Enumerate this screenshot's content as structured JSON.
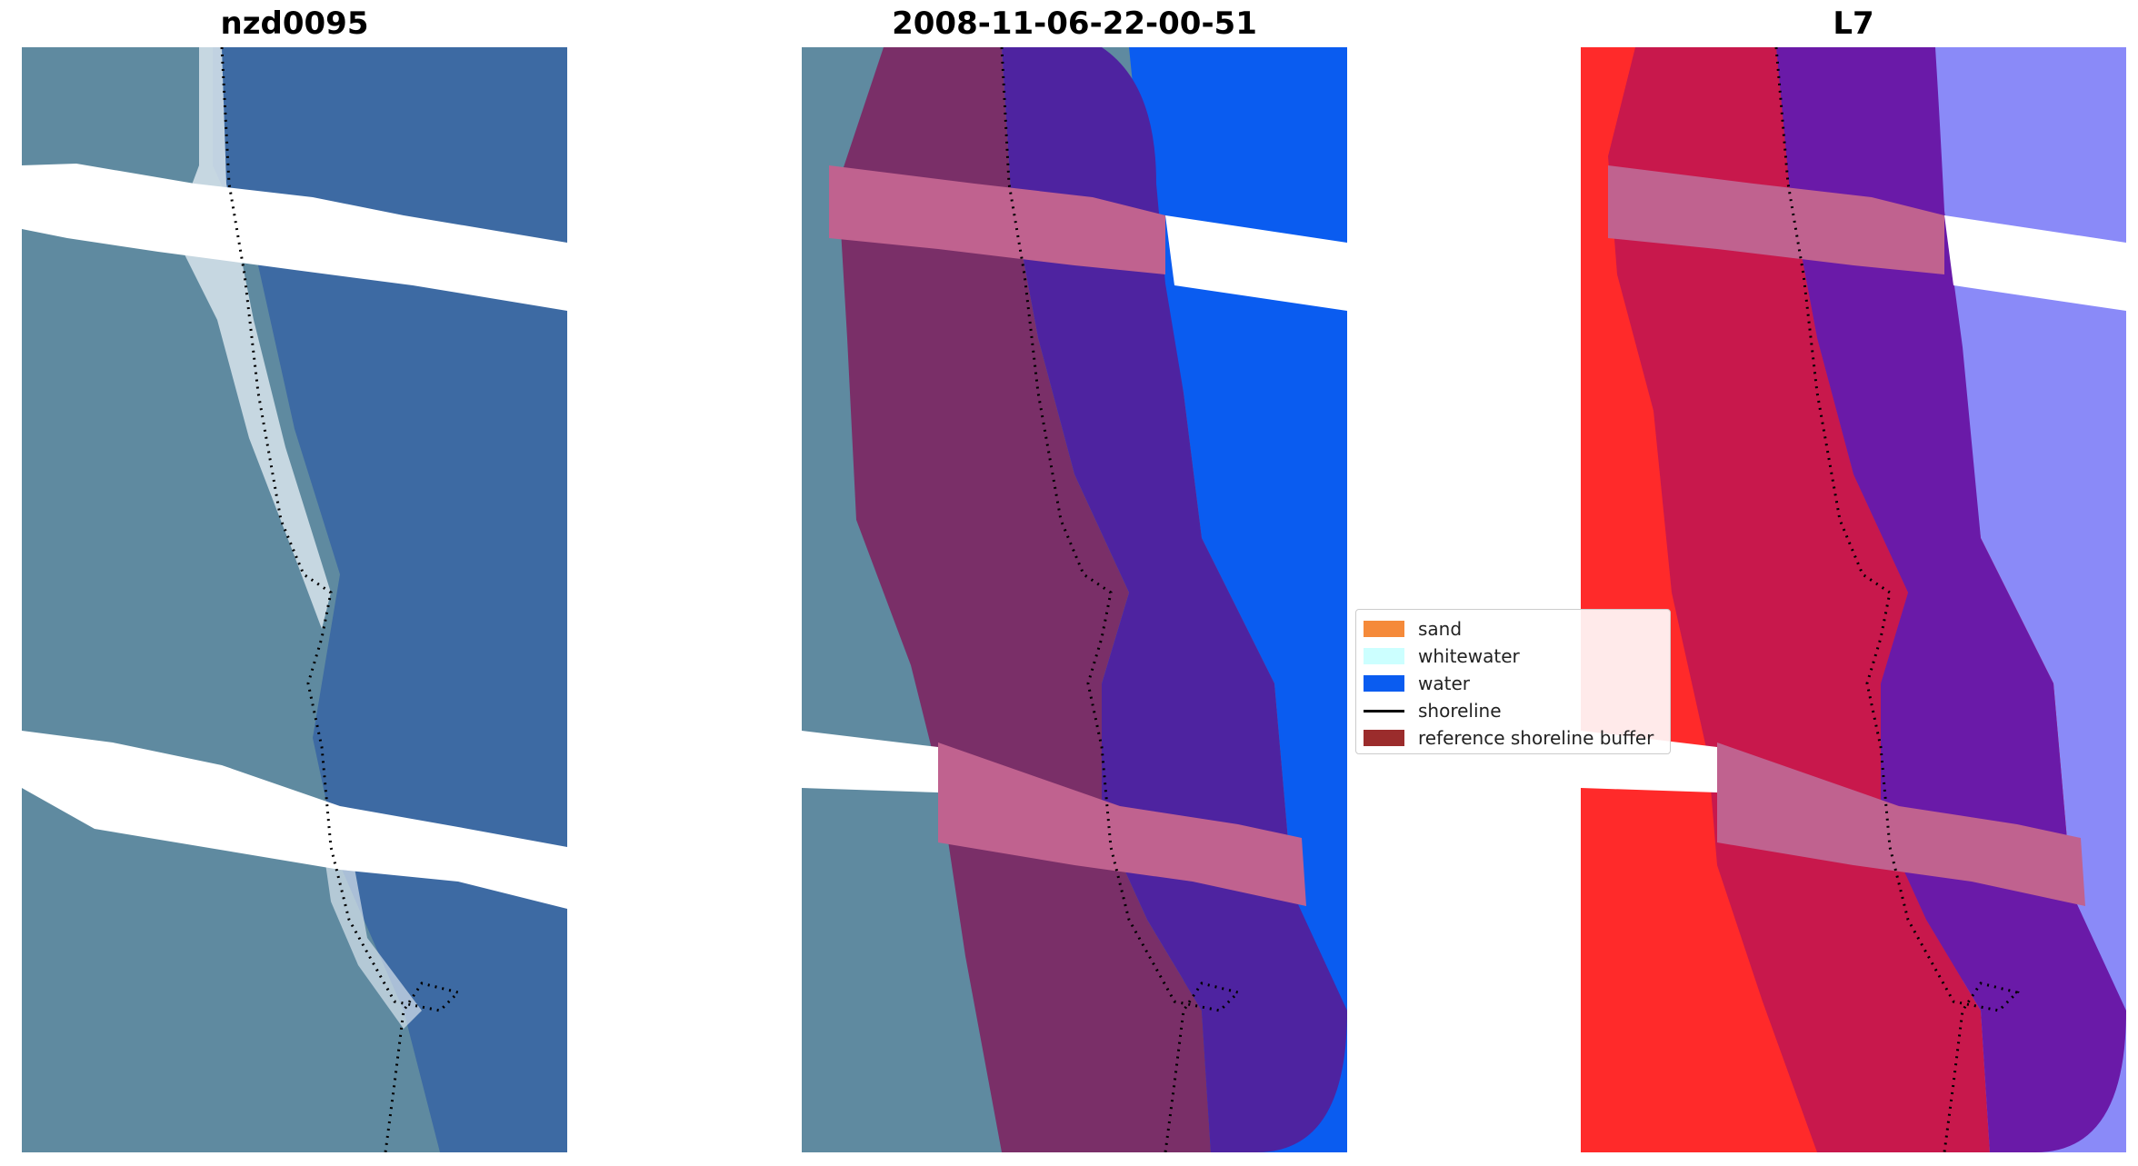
{
  "titles": {
    "left": "nzd0095",
    "middle": "2008-11-06-22-00-51",
    "right": "L7"
  },
  "legend": {
    "items": [
      {
        "label": "sand",
        "color": "#f58a3a",
        "type": "patch"
      },
      {
        "label": "whitewater",
        "color": "#ccffff",
        "type": "patch"
      },
      {
        "label": "water",
        "color": "#0a5cf0",
        "type": "patch"
      },
      {
        "label": "shoreline",
        "color": "#000000",
        "type": "line"
      },
      {
        "label": "reference shoreline buffer",
        "color": "#9b2c2c",
        "type": "patch"
      }
    ]
  },
  "colors": {
    "sea": "#3d6aa3",
    "land": "#5f8aa0",
    "beach": "#d8e4ec",
    "classified_water": "#0a5cf0",
    "buffer_land": "#7a2f68",
    "buffer_water": "#4e23a0",
    "buffer_stripe": "#c0628f",
    "index_land": "#ff2a2a",
    "index_water": "#8a8af8",
    "index_buffer_land": "#c8184c",
    "index_buffer_water": "#6a1aa8"
  }
}
